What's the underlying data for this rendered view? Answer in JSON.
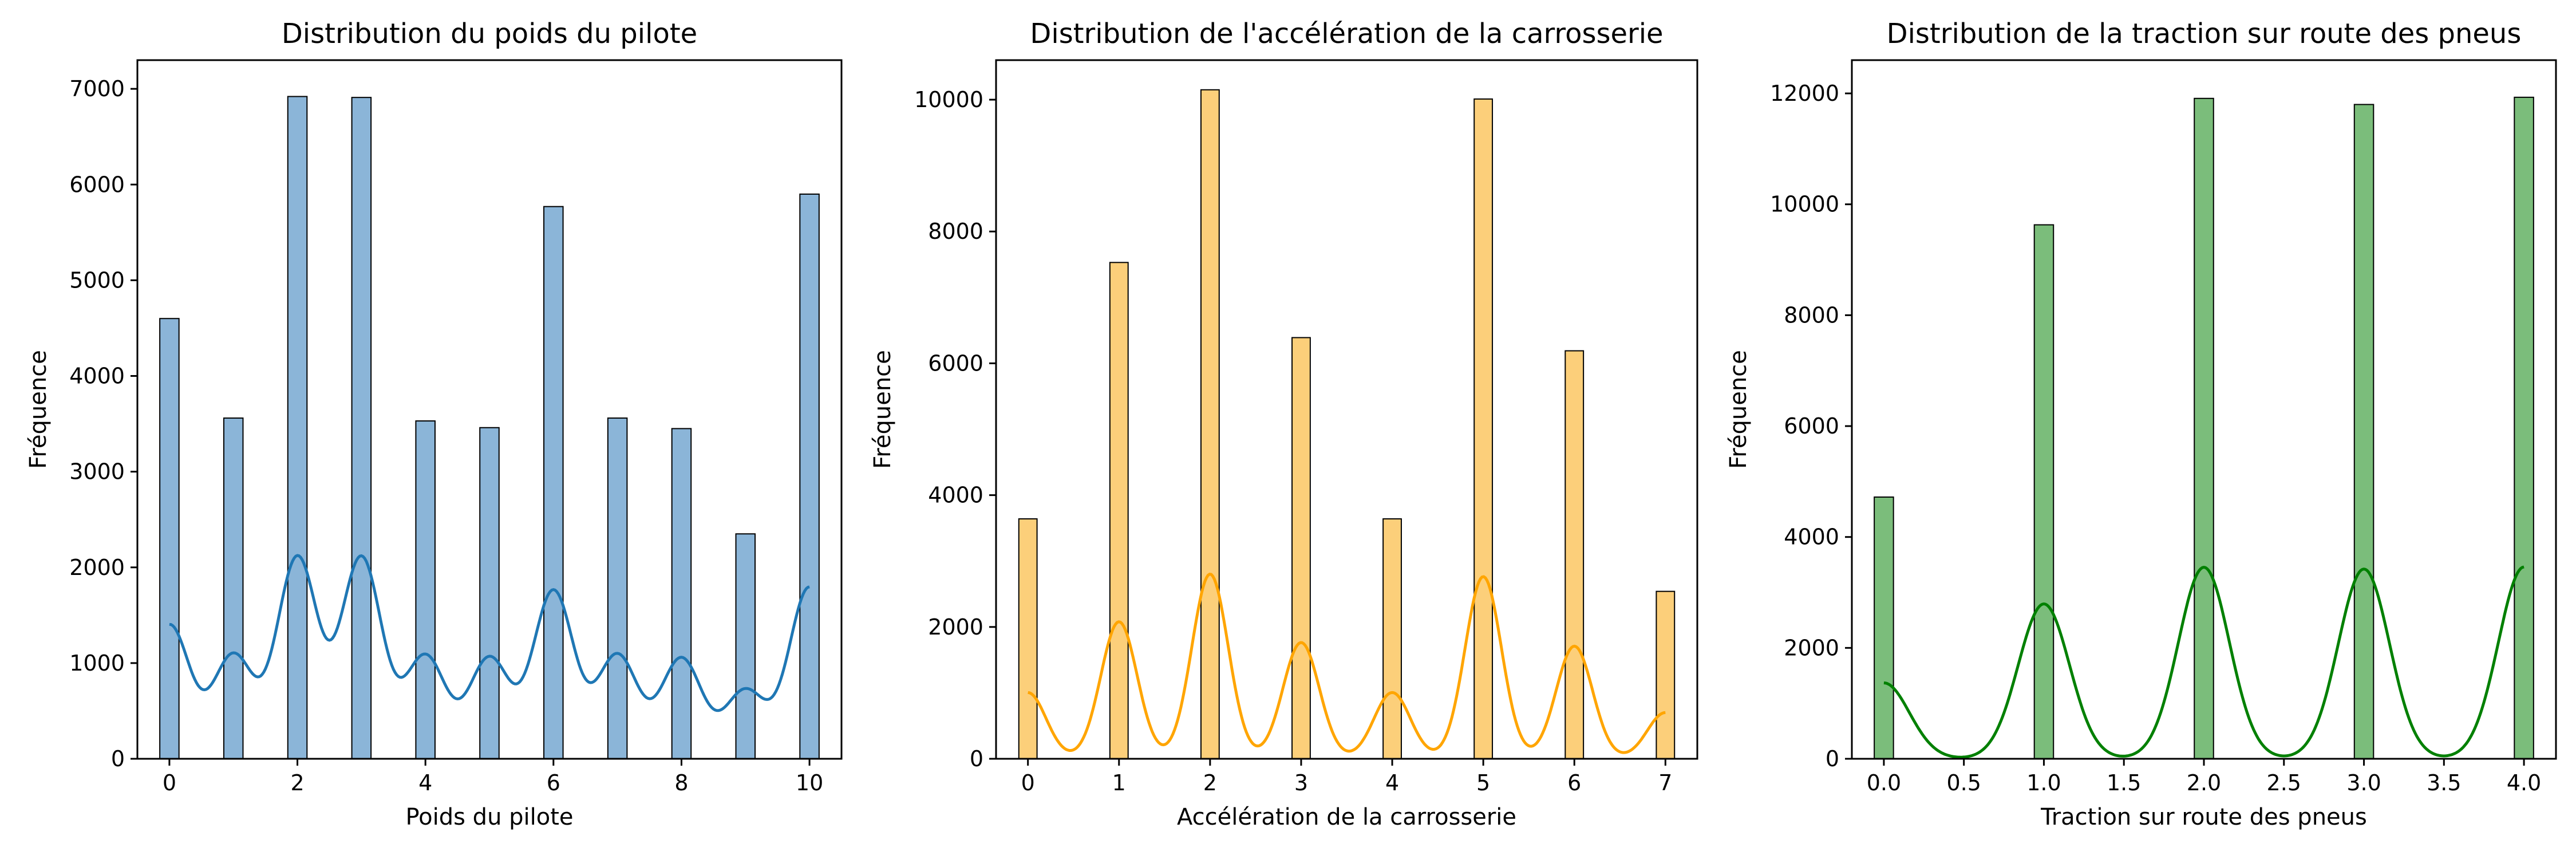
{
  "chart_data": [
    {
      "type": "bar",
      "title": "Distribution du poids du pilote",
      "xlabel": "Poids du pilote",
      "ylabel": "Fréquence",
      "xlim": [
        -0.5,
        10.5
      ],
      "ylim": [
        0,
        7300
      ],
      "xticks": [
        0,
        2,
        4,
        6,
        8,
        10
      ],
      "yticks": [
        0,
        1000,
        2000,
        3000,
        4000,
        5000,
        6000,
        7000
      ],
      "bar_color": "#8bb5d8",
      "kde_color": "#1f77b4",
      "bin_width": 0.3,
      "bins": [
        {
          "x": 0,
          "count": 4600
        },
        {
          "x": 1,
          "count": 3560
        },
        {
          "x": 2,
          "count": 6920
        },
        {
          "x": 3,
          "count": 6910
        },
        {
          "x": 4,
          "count": 3530
        },
        {
          "x": 5,
          "count": 3460
        },
        {
          "x": 6,
          "count": 5770
        },
        {
          "x": 7,
          "count": 3560
        },
        {
          "x": 8,
          "count": 3450
        },
        {
          "x": 9,
          "count": 2350
        },
        {
          "x": 10,
          "count": 5900
        }
      ],
      "kde": {
        "bandwidth": 0.32,
        "scale": 2000
      }
    },
    {
      "type": "bar",
      "title": "Distribution de l'accélération de la carrosserie",
      "xlabel": "Accélération de la carrosserie",
      "ylabel": "Fréquence",
      "xlim": [
        -0.35,
        7.35
      ],
      "ylim": [
        0,
        10600
      ],
      "xticks": [
        0,
        1,
        2,
        3,
        4,
        5,
        6,
        7
      ],
      "yticks": [
        0,
        2000,
        4000,
        6000,
        8000,
        10000
      ],
      "bar_color": "#fccf7a",
      "kde_color": "#ffa500",
      "bin_width": 0.2,
      "bins": [
        {
          "x": 0,
          "count": 3640
        },
        {
          "x": 1,
          "count": 7530
        },
        {
          "x": 2,
          "count": 10150
        },
        {
          "x": 3,
          "count": 6390
        },
        {
          "x": 4,
          "count": 3640
        },
        {
          "x": 5,
          "count": 10010
        },
        {
          "x": 6,
          "count": 6190
        },
        {
          "x": 7,
          "count": 2540
        }
      ],
      "kde": {
        "bandwidth": 0.2,
        "scale": 1000
      }
    },
    {
      "type": "bar",
      "title": "Distribution de la traction sur route des pneus",
      "xlabel": "Traction sur route des pneus",
      "ylabel": "Fréquence",
      "xlim": [
        -0.2,
        4.2
      ],
      "ylim": [
        0,
        12600
      ],
      "xticks": [
        "0.0",
        "0.5",
        "1.0",
        "1.5",
        "2.0",
        "2.5",
        "3.0",
        "3.5",
        "4.0"
      ],
      "yticks": [
        0,
        2000,
        4000,
        6000,
        8000,
        10000,
        12000
      ],
      "bar_color": "#7bbd7b",
      "kde_color": "#008000",
      "bin_width": 0.12,
      "bins": [
        {
          "x": 0,
          "count": 4720
        },
        {
          "x": 1,
          "count": 9630
        },
        {
          "x": 2,
          "count": 11910
        },
        {
          "x": 3,
          "count": 11800
        },
        {
          "x": 4,
          "count": 11930
        }
      ],
      "kde": {
        "bandwidth": 0.16,
        "scale": 1000
      }
    }
  ]
}
